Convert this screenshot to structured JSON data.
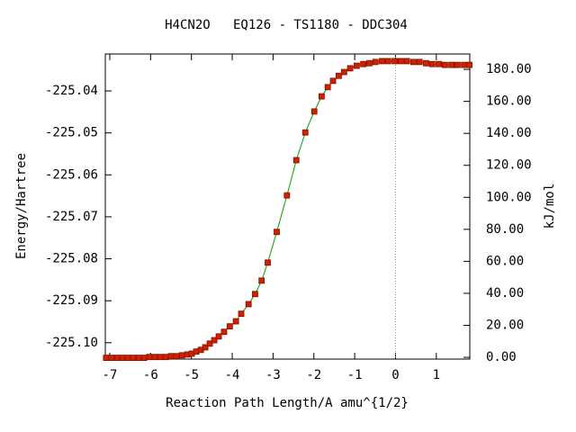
{
  "chart_data": {
    "type": "line",
    "title": "H4CN2O   EQ126 - TS1180 - DDC304",
    "xlabel": "Reaction Path Length/A amu^{1/2}",
    "ylabel": "Energy/Hartree",
    "y2label": "kJ/mol",
    "xlim": [
      -7.11,
      1.82
    ],
    "xticks": [
      -7,
      -6,
      -5,
      -4,
      -3,
      -2,
      -1,
      0,
      1
    ],
    "ylim": [
      -225.1039,
      -225.0312
    ],
    "yticks": [
      {
        "value": -225.1,
        "label": "-225.10"
      },
      -225.09,
      -225.08,
      -225.07,
      -225.06,
      -225.05,
      -225.04
    ],
    "y2lim": [
      -1.1,
      189.6
    ],
    "y2ticks": [
      {
        "value": 0,
        "label": "0.00"
      },
      {
        "value": 20,
        "label": "20.00"
      },
      {
        "value": 40,
        "label": "40.00"
      },
      {
        "value": 60,
        "label": "60.00"
      },
      {
        "value": 80,
        "label": "80.00"
      },
      {
        "value": 100,
        "label": "100.00"
      },
      {
        "value": 120,
        "label": "120.00"
      },
      {
        "value": 140,
        "label": "140.00"
      },
      {
        "value": 160,
        "label": "160.00"
      },
      {
        "value": 180,
        "label": "180.00"
      }
    ],
    "vline_x": 0,
    "x": [
      -7.09,
      -6.96,
      -6.82,
      -6.69,
      -6.56,
      -6.43,
      -6.29,
      -6.16,
      -6.03,
      -5.9,
      -5.76,
      -5.63,
      -5.5,
      -5.37,
      -5.23,
      -5.1,
      -4.99,
      -4.88,
      -4.77,
      -4.66,
      -4.55,
      -4.44,
      -4.33,
      -4.2,
      -4.06,
      -3.91,
      -3.78,
      -3.6,
      -3.44,
      -3.28,
      -3.13,
      -2.91,
      -2.66,
      -2.43,
      -2.21,
      -1.99,
      -1.81,
      -1.66,
      -1.53,
      -1.39,
      -1.26,
      -1.11,
      -0.95,
      -0.79,
      -0.64,
      -0.49,
      -0.33,
      -0.18,
      -0.02,
      0.13,
      0.28,
      0.44,
      0.59,
      0.75,
      0.9,
      1.06,
      1.21,
      1.37,
      1.52,
      1.68,
      1.81
    ],
    "series": [
      {
        "color": "#00a000",
        "marker_color": "#d02000",
        "axis": "y",
        "values": [
          -225.1036,
          -225.1036,
          -225.1036,
          -225.1036,
          -225.1036,
          -225.1036,
          -225.1036,
          -225.1036,
          -225.1034,
          -225.1034,
          -225.1034,
          -225.1034,
          -225.1032,
          -225.1032,
          -225.103,
          -225.1028,
          -225.1026,
          -225.1021,
          -225.1017,
          -225.1011,
          -225.1002,
          -225.0994,
          -225.0985,
          -225.0974,
          -225.0961,
          -225.0949,
          -225.0931,
          -225.0908,
          -225.0884,
          -225.0852,
          -225.0809,
          -225.0736,
          -225.0649,
          -225.0565,
          -225.0499,
          -225.0449,
          -225.0413,
          -225.0391,
          -225.0376,
          -225.0364,
          -225.0355,
          -225.0346,
          -225.034,
          -225.0336,
          -225.0334,
          -225.0331,
          -225.0329,
          -225.0329,
          -225.0329,
          -225.0329,
          -225.0329,
          -225.0331,
          -225.0331,
          -225.0334,
          -225.0336,
          -225.0336,
          -225.0338,
          -225.0338,
          -225.0338,
          -225.0338,
          -225.0338
        ]
      }
    ]
  }
}
